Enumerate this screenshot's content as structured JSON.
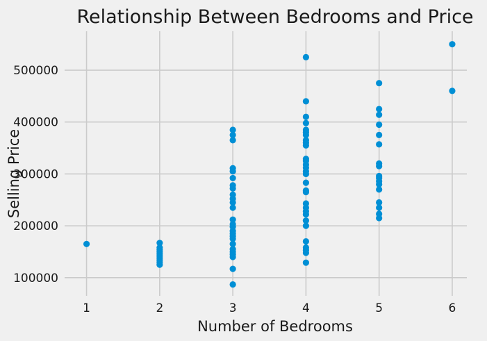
{
  "chart_data": {
    "type": "scatter",
    "title": "Relationship Between Bedrooms and Price",
    "xlabel": "Number of Bedrooms",
    "ylabel": "Selling Price",
    "xlim": [
      0.7,
      6.2
    ],
    "ylim": [
      65000,
      575000
    ],
    "xticks": [
      1,
      2,
      3,
      4,
      5,
      6
    ],
    "yticks": [
      100000,
      200000,
      300000,
      400000,
      500000
    ],
    "grid": true,
    "legend": "none",
    "colors": {
      "marker": "#008fd5",
      "background": "#f0f0f0",
      "grid": "#cbcbcb",
      "text": "#1a1a1a"
    },
    "series": [
      {
        "points": [
          {
            "x": 1,
            "y": 165000
          },
          {
            "x": 2,
            "y": 125000
          },
          {
            "x": 2,
            "y": 130000
          },
          {
            "x": 2,
            "y": 134000
          },
          {
            "x": 2,
            "y": 138000
          },
          {
            "x": 2,
            "y": 142000
          },
          {
            "x": 2,
            "y": 146000
          },
          {
            "x": 2,
            "y": 150000
          },
          {
            "x": 2,
            "y": 154000
          },
          {
            "x": 2,
            "y": 158000
          },
          {
            "x": 2,
            "y": 167000
          },
          {
            "x": 3,
            "y": 87000
          },
          {
            "x": 3,
            "y": 117000
          },
          {
            "x": 3,
            "y": 140000
          },
          {
            "x": 3,
            "y": 145000
          },
          {
            "x": 3,
            "y": 150000
          },
          {
            "x": 3,
            "y": 155000
          },
          {
            "x": 3,
            "y": 165000
          },
          {
            "x": 3,
            "y": 175000
          },
          {
            "x": 3,
            "y": 180000
          },
          {
            "x": 3,
            "y": 185000
          },
          {
            "x": 3,
            "y": 190000
          },
          {
            "x": 3,
            "y": 198000
          },
          {
            "x": 3,
            "y": 203000
          },
          {
            "x": 3,
            "y": 212000
          },
          {
            "x": 3,
            "y": 235000
          },
          {
            "x": 3,
            "y": 245000
          },
          {
            "x": 3,
            "y": 252000
          },
          {
            "x": 3,
            "y": 260000
          },
          {
            "x": 3,
            "y": 272000
          },
          {
            "x": 3,
            "y": 278000
          },
          {
            "x": 3,
            "y": 292000
          },
          {
            "x": 3,
            "y": 305000
          },
          {
            "x": 3,
            "y": 311000
          },
          {
            "x": 3,
            "y": 365000
          },
          {
            "x": 3,
            "y": 375000
          },
          {
            "x": 3,
            "y": 385000
          },
          {
            "x": 4,
            "y": 129000
          },
          {
            "x": 4,
            "y": 148000
          },
          {
            "x": 4,
            "y": 153000
          },
          {
            "x": 4,
            "y": 158000
          },
          {
            "x": 4,
            "y": 170000
          },
          {
            "x": 4,
            "y": 200000
          },
          {
            "x": 4,
            "y": 210000
          },
          {
            "x": 4,
            "y": 222000
          },
          {
            "x": 4,
            "y": 228000
          },
          {
            "x": 4,
            "y": 235000
          },
          {
            "x": 4,
            "y": 243000
          },
          {
            "x": 4,
            "y": 265000
          },
          {
            "x": 4,
            "y": 268000
          },
          {
            "x": 4,
            "y": 283000
          },
          {
            "x": 4,
            "y": 300000
          },
          {
            "x": 4,
            "y": 305000
          },
          {
            "x": 4,
            "y": 312000
          },
          {
            "x": 4,
            "y": 318000
          },
          {
            "x": 4,
            "y": 325000
          },
          {
            "x": 4,
            "y": 329000
          },
          {
            "x": 4,
            "y": 355000
          },
          {
            "x": 4,
            "y": 360000
          },
          {
            "x": 4,
            "y": 365000
          },
          {
            "x": 4,
            "y": 375000
          },
          {
            "x": 4,
            "y": 380000
          },
          {
            "x": 4,
            "y": 385000
          },
          {
            "x": 4,
            "y": 398000
          },
          {
            "x": 4,
            "y": 410000
          },
          {
            "x": 4,
            "y": 440000
          },
          {
            "x": 4,
            "y": 525000
          },
          {
            "x": 5,
            "y": 215000
          },
          {
            "x": 5,
            "y": 223000
          },
          {
            "x": 5,
            "y": 235000
          },
          {
            "x": 5,
            "y": 245000
          },
          {
            "x": 5,
            "y": 270000
          },
          {
            "x": 5,
            "y": 280000
          },
          {
            "x": 5,
            "y": 286000
          },
          {
            "x": 5,
            "y": 292000
          },
          {
            "x": 5,
            "y": 296000
          },
          {
            "x": 5,
            "y": 315000
          },
          {
            "x": 5,
            "y": 320000
          },
          {
            "x": 5,
            "y": 357000
          },
          {
            "x": 5,
            "y": 375000
          },
          {
            "x": 5,
            "y": 395000
          },
          {
            "x": 5,
            "y": 414000
          },
          {
            "x": 5,
            "y": 425000
          },
          {
            "x": 5,
            "y": 475000
          },
          {
            "x": 6,
            "y": 460000
          },
          {
            "x": 6,
            "y": 550000
          }
        ]
      }
    ]
  }
}
